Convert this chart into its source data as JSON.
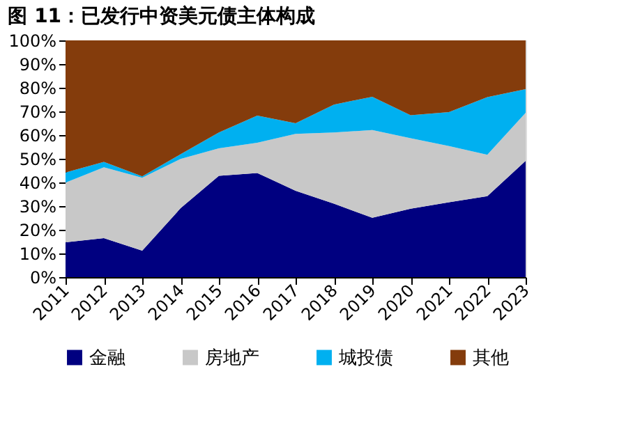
{
  "chart_data": {
    "type": "area",
    "stacked": true,
    "title": "图 11：已发行中资美元债主体构成",
    "categories": [
      "2011",
      "2012",
      "2013",
      "2014",
      "2015",
      "2016",
      "2017",
      "2018",
      "2019",
      "2020",
      "2021",
      "2022",
      "2023"
    ],
    "series": [
      {
        "name": "金融",
        "color": "#000080",
        "values": [
          14.7,
          16.5,
          11.2,
          29.1,
          42.8,
          44.0,
          36.5,
          31.0,
          25.1,
          28.9,
          31.6,
          34.2,
          49.1
        ]
      },
      {
        "name": "房地产",
        "color": "#c8c8c8",
        "values": [
          25.2,
          29.9,
          30.8,
          20.8,
          11.6,
          12.8,
          24.0,
          30.1,
          37.0,
          29.8,
          23.8,
          17.5,
          20.3
        ]
      },
      {
        "name": "城投债",
        "color": "#00b0f0",
        "values": [
          4.3,
          2.3,
          0.6,
          2.0,
          6.7,
          11.4,
          4.5,
          11.8,
          14.1,
          9.7,
          14.3,
          24.3,
          10.0
        ]
      },
      {
        "name": "其他",
        "color": "#843c0c",
        "values": [
          55.8,
          51.3,
          57.4,
          48.1,
          38.9,
          31.8,
          35.0,
          27.1,
          23.8,
          31.6,
          30.3,
          24.0,
          20.6
        ]
      }
    ],
    "ylim": [
      0,
      100
    ],
    "yticks": [
      {
        "value": 0,
        "label": "0%"
      },
      {
        "value": 10,
        "label": "10%"
      },
      {
        "value": 20,
        "label": "20%"
      },
      {
        "value": 30,
        "label": "30%"
      },
      {
        "value": 40,
        "label": "40%"
      },
      {
        "value": 50,
        "label": "50%"
      },
      {
        "value": 60,
        "label": "60%"
      },
      {
        "value": 70,
        "label": "70%"
      },
      {
        "value": 80,
        "label": "80%"
      },
      {
        "value": 90,
        "label": "90%"
      },
      {
        "value": 100,
        "label": "100%"
      }
    ],
    "grid": false,
    "legend": "bottom"
  }
}
